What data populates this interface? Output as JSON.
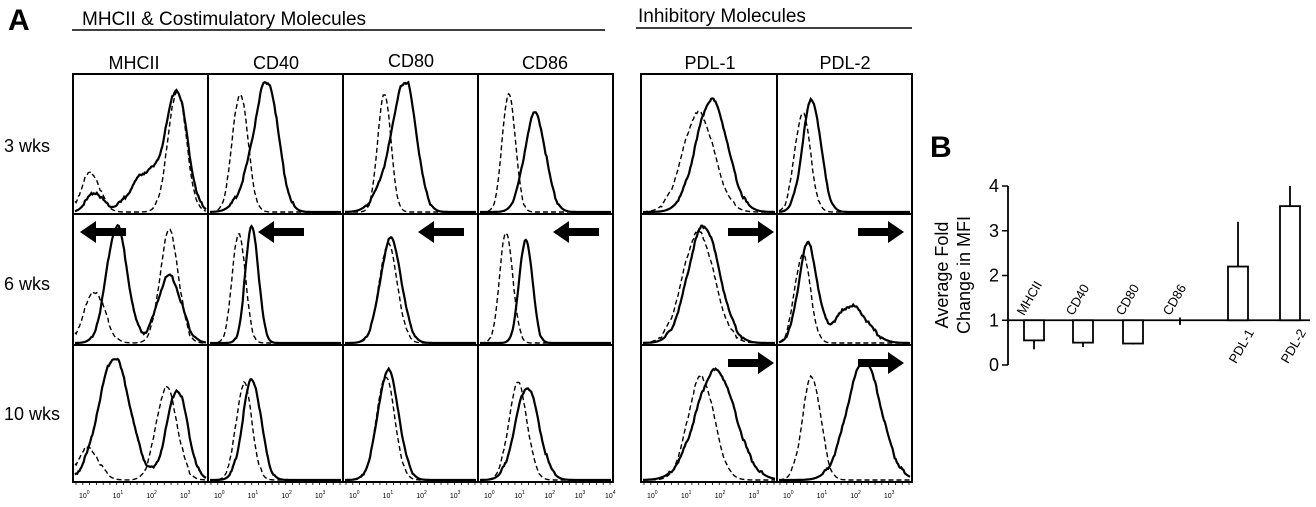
{
  "panel_a": {
    "letter": "A",
    "groups": [
      {
        "title": "MHCII & Costimulatory Molecules",
        "columns": [
          "MHCII",
          "CD40",
          "CD80",
          "CD86"
        ]
      },
      {
        "title": "Inhibitory  Molecules",
        "columns": [
          "PDL-1",
          "PDL-2"
        ]
      }
    ],
    "rows": [
      "3 wks",
      "6 wks",
      "10 wks"
    ],
    "arrows": {
      "6 wks": [
        "left",
        "left",
        "left",
        "left",
        "right",
        "right"
      ],
      "10 wks": [
        "none",
        "none",
        "none",
        "none",
        "right",
        "right"
      ]
    },
    "x_ticks": [
      "0",
      "1",
      "2",
      "3"
    ],
    "x_ticks_last_col": [
      "0",
      "1",
      "2",
      "3",
      "4"
    ],
    "tick_base": "10"
  },
  "panel_b": {
    "letter": "B",
    "chart_data": {
      "type": "bar",
      "ylabel": "Average Fold Change in MFI",
      "ylabel_lines": [
        "Average Fold",
        "Change in MFI"
      ],
      "ylim": [
        0,
        4
      ],
      "yticks": [
        "0",
        "1",
        "2",
        "3",
        "4"
      ],
      "baseline": 1,
      "categories": [
        "MHCII",
        "CD40",
        "CD80",
        "CD86",
        "PDL-1",
        "PDL-2"
      ],
      "values": [
        0.55,
        0.5,
        0.48,
        0.98,
        2.2,
        3.55
      ],
      "errors": [
        0.2,
        0.1,
        0.02,
        0.08,
        1.0,
        0.45
      ]
    }
  }
}
